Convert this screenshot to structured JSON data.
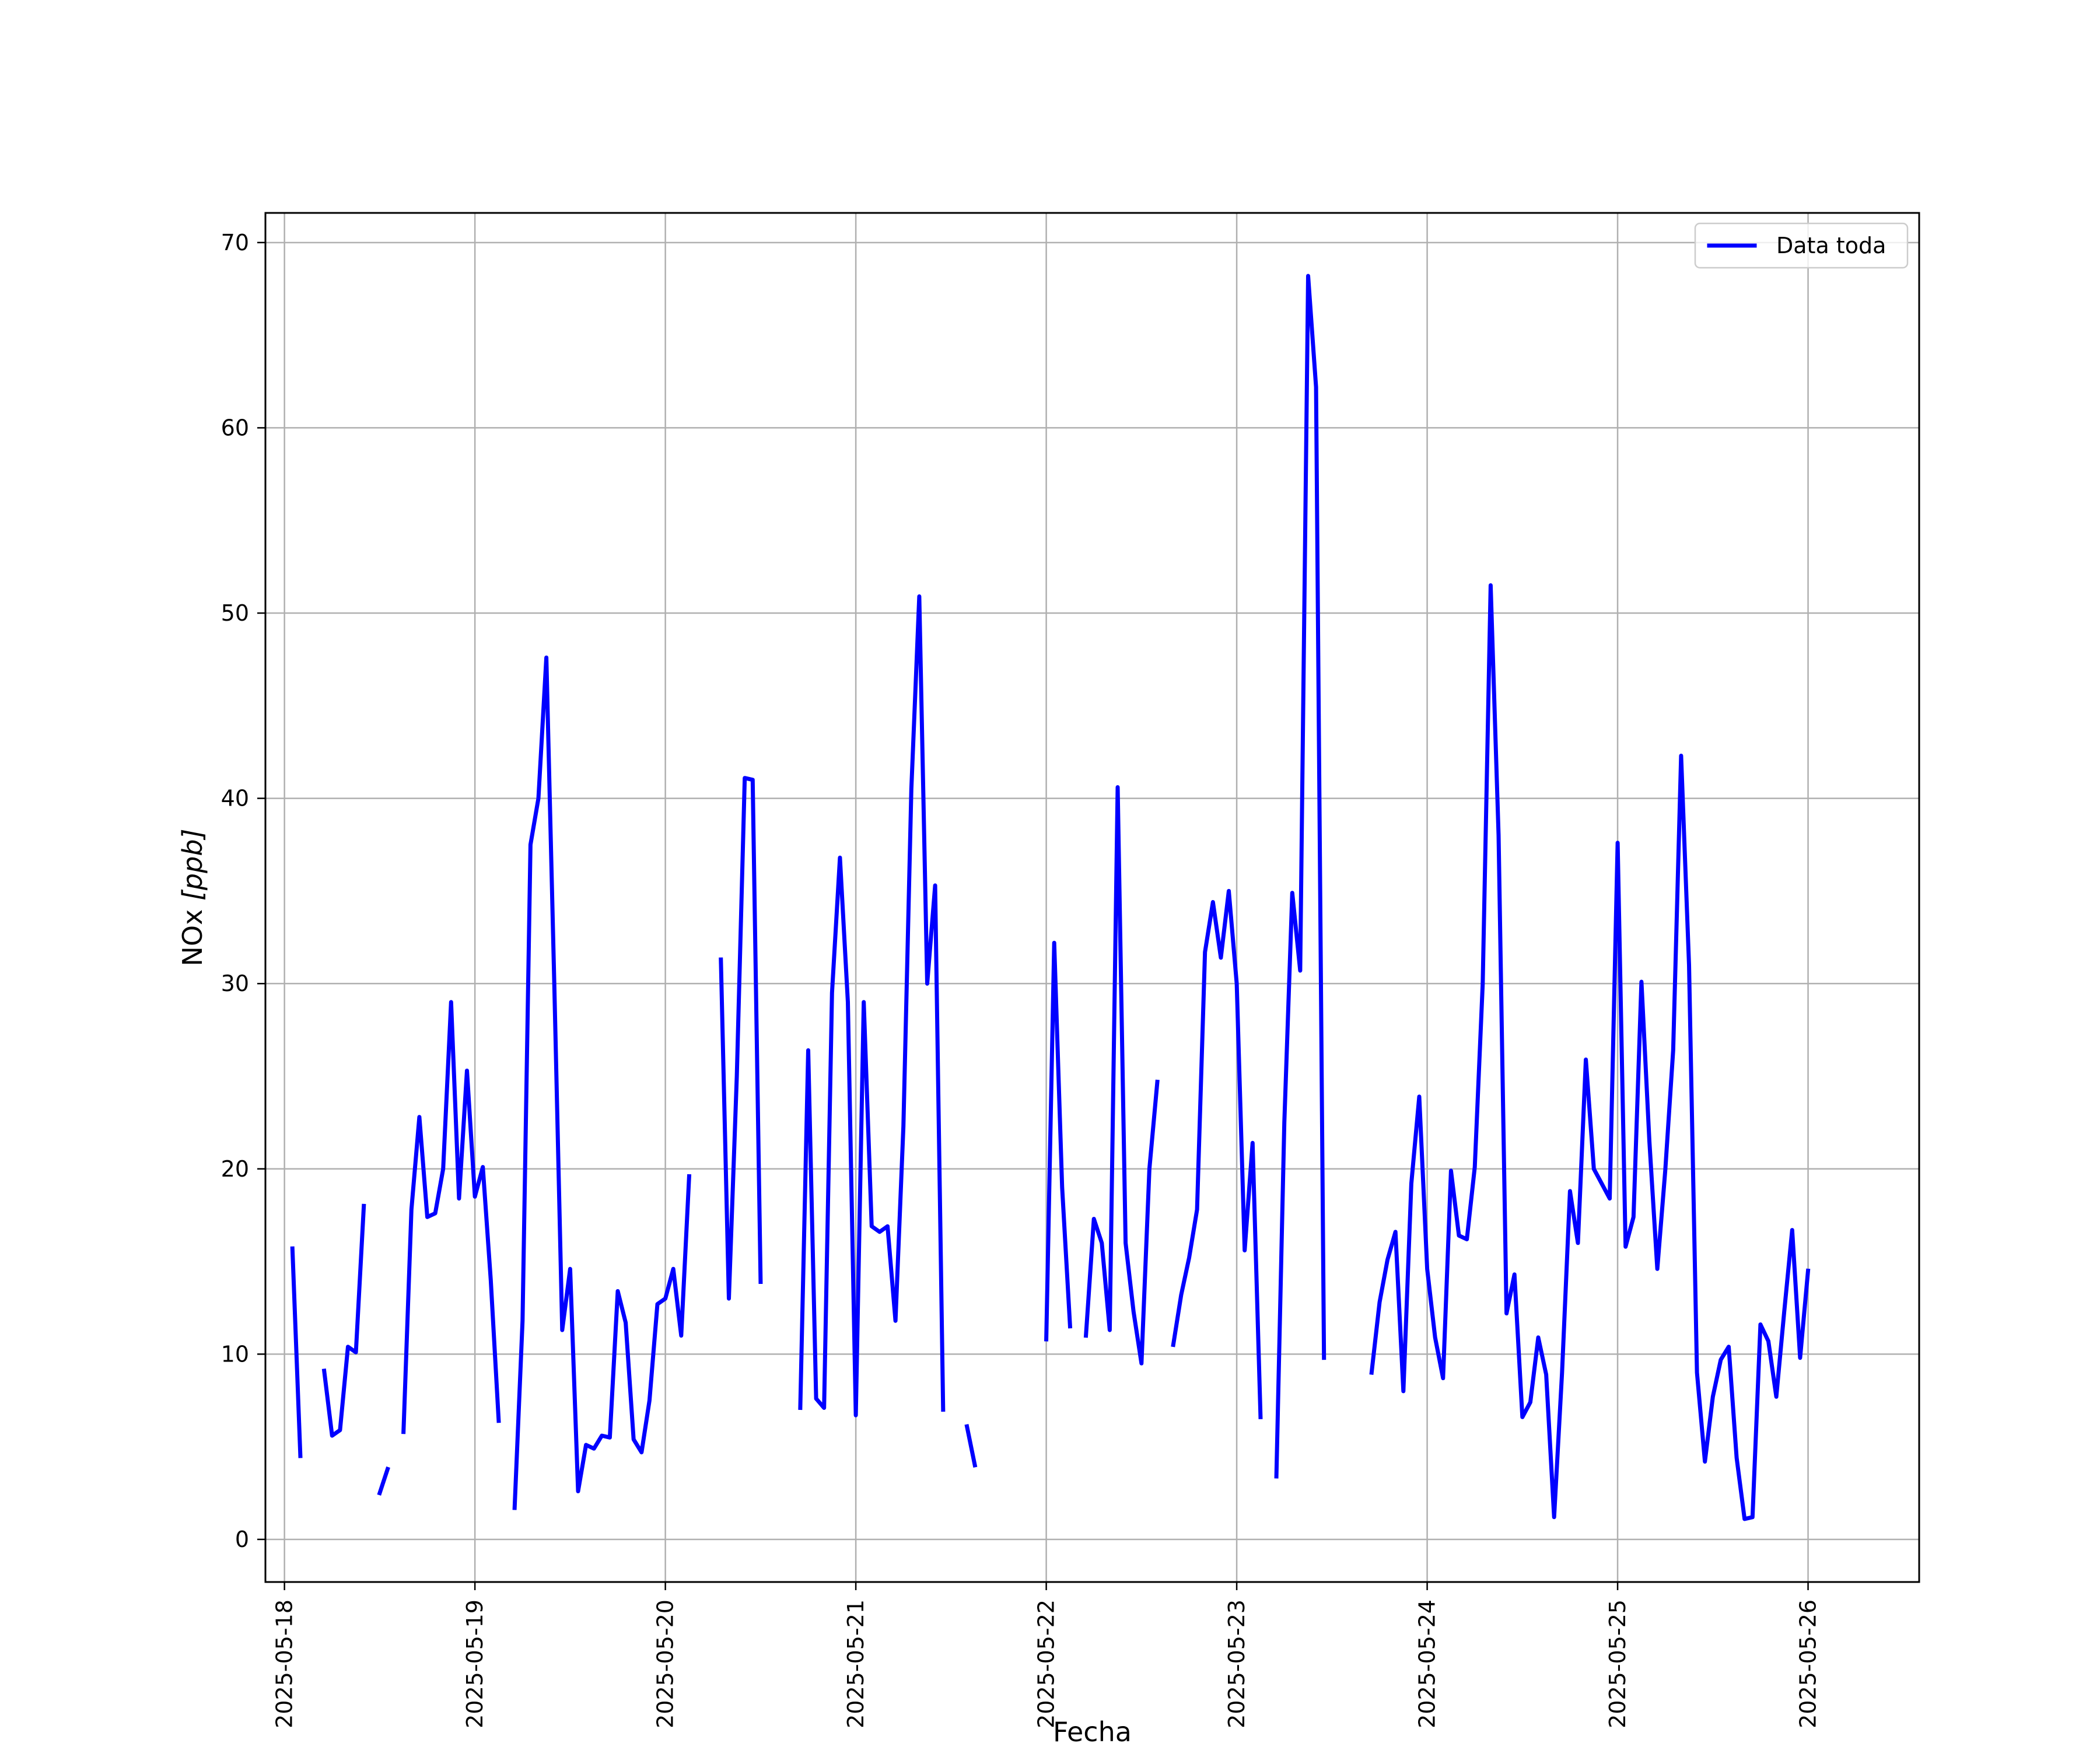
{
  "chart_data": {
    "type": "line",
    "title": "",
    "xlabel": "Fecha",
    "ylabel_main": "NOx ",
    "ylabel_unit": "[ppb]",
    "x_type": "date",
    "xlim": [
      "2025-05-17T21:36",
      "2025-05-26T14:00"
    ],
    "ylim": [
      -2.3,
      71.6
    ],
    "x_ticks": [
      "2025-05-18",
      "2025-05-19",
      "2025-05-20",
      "2025-05-21",
      "2025-05-22",
      "2025-05-23",
      "2025-05-24",
      "2025-05-25",
      "2025-05-26"
    ],
    "y_ticks": [
      0,
      10,
      20,
      30,
      40,
      50,
      60,
      70
    ],
    "grid": true,
    "legend": {
      "position": "top-right",
      "entries": [
        "Data toda"
      ]
    },
    "series": [
      {
        "name": "Data toda",
        "color": "#0000ff",
        "segments": [
          [
            [
              "2025-05-18T01:00",
              15.7
            ],
            [
              "2025-05-18T02:00",
              4.5
            ]
          ],
          [
            [
              "2025-05-18T05:00",
              9.1
            ],
            [
              "2025-05-18T06:00",
              5.6
            ],
            [
              "2025-05-18T07:00",
              5.9
            ],
            [
              "2025-05-18T08:00",
              10.4
            ],
            [
              "2025-05-18T09:00",
              10.1
            ],
            [
              "2025-05-18T10:00",
              18.0
            ]
          ],
          [
            [
              "2025-05-18T12:00",
              2.5
            ],
            [
              "2025-05-18T13:00",
              3.8
            ]
          ],
          [
            [
              "2025-05-18T15:00",
              5.8
            ],
            [
              "2025-05-18T16:00",
              17.8
            ],
            [
              "2025-05-18T17:00",
              22.8
            ],
            [
              "2025-05-18T18:00",
              17.4
            ],
            [
              "2025-05-18T19:00",
              17.6
            ],
            [
              "2025-05-18T20:00",
              20.0
            ],
            [
              "2025-05-18T21:00",
              29.0
            ],
            [
              "2025-05-18T22:00",
              18.4
            ],
            [
              "2025-05-18T23:00",
              25.3
            ],
            [
              "2025-05-19T00:00",
              18.5
            ],
            [
              "2025-05-19T01:00",
              20.1
            ],
            [
              "2025-05-19T02:00",
              14.0
            ],
            [
              "2025-05-19T03:00",
              6.4
            ]
          ],
          [
            [
              "2025-05-19T05:00",
              1.7
            ],
            [
              "2025-05-19T06:00",
              11.8
            ],
            [
              "2025-05-19T07:00",
              37.5
            ],
            [
              "2025-05-19T08:00",
              40.0
            ],
            [
              "2025-05-19T09:00",
              47.6
            ],
            [
              "2025-05-19T10:00",
              30.0
            ],
            [
              "2025-05-19T11:00",
              11.3
            ],
            [
              "2025-05-19T12:00",
              14.6
            ],
            [
              "2025-05-19T13:00",
              2.6
            ],
            [
              "2025-05-19T14:00",
              5.1
            ],
            [
              "2025-05-19T15:00",
              4.9
            ],
            [
              "2025-05-19T16:00",
              5.6
            ],
            [
              "2025-05-19T17:00",
              5.5
            ],
            [
              "2025-05-19T18:00",
              13.4
            ],
            [
              "2025-05-19T19:00",
              11.7
            ],
            [
              "2025-05-19T20:00",
              5.4
            ],
            [
              "2025-05-19T21:00",
              4.7
            ],
            [
              "2025-05-19T22:00",
              7.5
            ],
            [
              "2025-05-19T23:00",
              12.7
            ],
            [
              "2025-05-20T00:00",
              13.0
            ],
            [
              "2025-05-20T01:00",
              14.6
            ],
            [
              "2025-05-20T02:00",
              11.0
            ],
            [
              "2025-05-20T03:00",
              19.6
            ]
          ],
          [
            [
              "2025-05-20T07:00",
              31.3
            ],
            [
              "2025-05-20T08:00",
              13.0
            ],
            [
              "2025-05-20T09:00",
              25.0
            ],
            [
              "2025-05-20T10:00",
              41.1
            ],
            [
              "2025-05-20T11:00",
              41.0
            ],
            [
              "2025-05-20T12:00",
              13.9
            ]
          ],
          [
            [
              "2025-05-20T17:00",
              7.1
            ],
            [
              "2025-05-20T18:00",
              26.4
            ],
            [
              "2025-05-20T19:00",
              7.6
            ],
            [
              "2025-05-20T20:00",
              7.1
            ],
            [
              "2025-05-20T21:00",
              29.5
            ],
            [
              "2025-05-20T22:00",
              36.8
            ],
            [
              "2025-05-20T23:00",
              29.0
            ],
            [
              "2025-05-21T00:00",
              6.7
            ],
            [
              "2025-05-21T01:00",
              29.0
            ],
            [
              "2025-05-21T02:00",
              16.9
            ],
            [
              "2025-05-21T03:00",
              16.6
            ],
            [
              "2025-05-21T04:00",
              16.9
            ],
            [
              "2025-05-21T05:00",
              11.8
            ],
            [
              "2025-05-21T06:00",
              22.3
            ],
            [
              "2025-05-21T07:00",
              40.5
            ],
            [
              "2025-05-21T08:00",
              50.9
            ],
            [
              "2025-05-21T09:00",
              30.0
            ],
            [
              "2025-05-21T10:00",
              35.3
            ],
            [
              "2025-05-21T11:00",
              7.0
            ]
          ],
          [
            [
              "2025-05-21T14:00",
              6.1
            ],
            [
              "2025-05-21T15:00",
              4.0
            ]
          ],
          [
            [
              "2025-05-22T00:00",
              10.8
            ],
            [
              "2025-05-22T01:00",
              32.2
            ],
            [
              "2025-05-22T02:00",
              19.0
            ],
            [
              "2025-05-22T03:00",
              11.5
            ]
          ],
          [
            [
              "2025-05-22T05:00",
              11.0
            ],
            [
              "2025-05-22T06:00",
              17.3
            ],
            [
              "2025-05-22T07:00",
              16.0
            ],
            [
              "2025-05-22T08:00",
              11.3
            ],
            [
              "2025-05-22T09:00",
              40.6
            ],
            [
              "2025-05-22T10:00",
              16.0
            ],
            [
              "2025-05-22T11:00",
              12.3
            ],
            [
              "2025-05-22T12:00",
              9.5
            ],
            [
              "2025-05-22T13:00",
              20.0
            ],
            [
              "2025-05-22T14:00",
              24.7
            ]
          ],
          [
            [
              "2025-05-22T16:00",
              10.5
            ],
            [
              "2025-05-22T17:00",
              13.2
            ],
            [
              "2025-05-22T18:00",
              15.2
            ],
            [
              "2025-05-22T19:00",
              17.8
            ],
            [
              "2025-05-22T20:00",
              31.7
            ],
            [
              "2025-05-22T21:00",
              34.4
            ],
            [
              "2025-05-22T22:00",
              31.4
            ],
            [
              "2025-05-22T23:00",
              35.0
            ],
            [
              "2025-05-23T00:00",
              30.0
            ],
            [
              "2025-05-23T01:00",
              15.6
            ],
            [
              "2025-05-23T02:00",
              21.4
            ],
            [
              "2025-05-23T03:00",
              6.6
            ]
          ],
          [
            [
              "2025-05-23T05:00",
              3.4
            ],
            [
              "2025-05-23T06:00",
              22.5
            ],
            [
              "2025-05-23T07:00",
              34.9
            ],
            [
              "2025-05-23T08:00",
              30.7
            ],
            [
              "2025-05-23T09:00",
              68.2
            ],
            [
              "2025-05-23T10:00",
              62.2
            ],
            [
              "2025-05-23T11:00",
              9.8
            ]
          ],
          [
            [
              "2025-05-23T17:00",
              9.0
            ],
            [
              "2025-05-23T18:00",
              12.8
            ],
            [
              "2025-05-23T19:00",
              15.1
            ],
            [
              "2025-05-23T20:00",
              16.6
            ],
            [
              "2025-05-23T21:00",
              8.0
            ],
            [
              "2025-05-23T22:00",
              19.2
            ],
            [
              "2025-05-23T23:00",
              23.9
            ],
            [
              "2025-05-24T00:00",
              14.6
            ],
            [
              "2025-05-24T01:00",
              10.9
            ],
            [
              "2025-05-24T02:00",
              8.7
            ],
            [
              "2025-05-24T03:00",
              19.9
            ],
            [
              "2025-05-24T04:00",
              16.4
            ],
            [
              "2025-05-24T05:00",
              16.2
            ],
            [
              "2025-05-24T06:00",
              20.1
            ],
            [
              "2025-05-24T07:00",
              30.0
            ],
            [
              "2025-05-24T08:00",
              51.5
            ],
            [
              "2025-05-24T09:00",
              38.0
            ],
            [
              "2025-05-24T10:00",
              12.2
            ],
            [
              "2025-05-24T11:00",
              14.3
            ],
            [
              "2025-05-24T12:00",
              6.6
            ],
            [
              "2025-05-24T13:00",
              7.4
            ],
            [
              "2025-05-24T14:00",
              10.9
            ],
            [
              "2025-05-24T15:00",
              8.9
            ],
            [
              "2025-05-24T16:00",
              1.2
            ],
            [
              "2025-05-24T17:00",
              9.0
            ],
            [
              "2025-05-24T18:00",
              18.8
            ],
            [
              "2025-05-24T19:00",
              16.0
            ],
            [
              "2025-05-24T20:00",
              25.9
            ],
            [
              "2025-05-24T21:00",
              20.0
            ],
            [
              "2025-05-24T22:00",
              19.2
            ],
            [
              "2025-05-24T23:00",
              18.4
            ],
            [
              "2025-05-25T00:00",
              37.6
            ],
            [
              "2025-05-25T01:00",
              15.8
            ],
            [
              "2025-05-25T02:00",
              17.4
            ],
            [
              "2025-05-25T03:00",
              30.1
            ],
            [
              "2025-05-25T04:00",
              21.5
            ],
            [
              "2025-05-25T05:00",
              14.6
            ],
            [
              "2025-05-25T06:00",
              19.9
            ],
            [
              "2025-05-25T07:00",
              26.4
            ],
            [
              "2025-05-25T08:00",
              42.3
            ],
            [
              "2025-05-25T09:00",
              31.0
            ],
            [
              "2025-05-25T10:00",
              9.0
            ],
            [
              "2025-05-25T11:00",
              4.2
            ],
            [
              "2025-05-25T12:00",
              7.7
            ],
            [
              "2025-05-25T13:00",
              9.7
            ],
            [
              "2025-05-25T14:00",
              10.4
            ],
            [
              "2025-05-25T15:00",
              4.4
            ],
            [
              "2025-05-25T16:00",
              1.1
            ],
            [
              "2025-05-25T17:00",
              1.2
            ],
            [
              "2025-05-25T18:00",
              11.6
            ],
            [
              "2025-05-25T19:00",
              10.7
            ],
            [
              "2025-05-25T20:00",
              7.7
            ],
            [
              "2025-05-25T21:00",
              12.3
            ],
            [
              "2025-05-25T22:00",
              16.7
            ],
            [
              "2025-05-25T23:00",
              9.8
            ],
            [
              "2025-05-26T00:00",
              14.5
            ]
          ]
        ]
      }
    ]
  }
}
